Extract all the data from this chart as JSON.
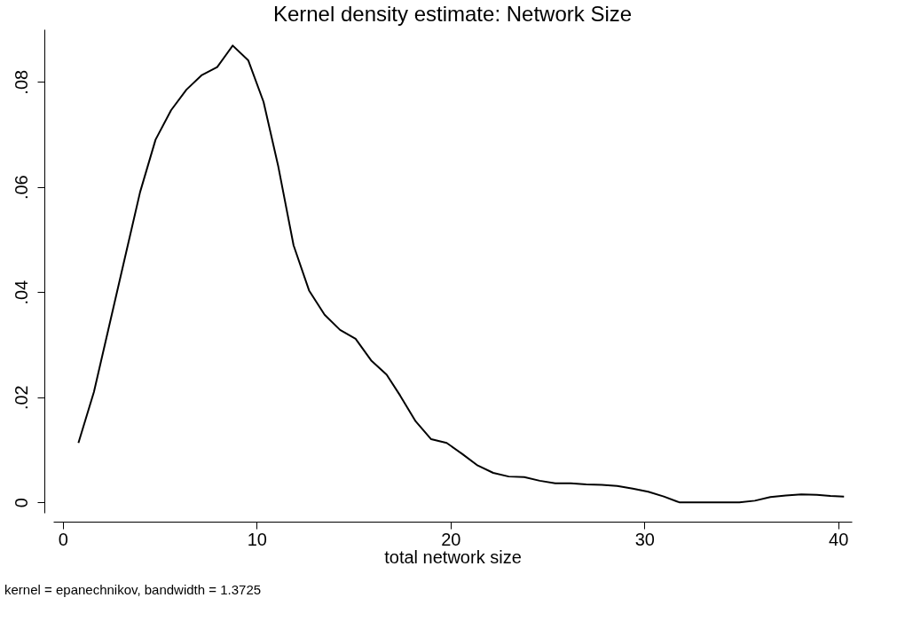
{
  "chart_data": {
    "type": "line",
    "title": "Kernel density estimate: Network Size",
    "xlabel": "total network size",
    "annotations": [
      "kernel = epanechnikov, bandwidth = 1.3725"
    ],
    "x": [
      0.8,
      1.6,
      2.35,
      3.14,
      3.98,
      4.78,
      5.58,
      6.37,
      7.17,
      7.96,
      8.76,
      9.56,
      10.35,
      11.1,
      11.9,
      12.7,
      13.5,
      14.3,
      15.1,
      15.9,
      16.7,
      17.4,
      18.2,
      19.0,
      19.8,
      20.6,
      21.4,
      22.2,
      23.0,
      23.8,
      24.6,
      25.4,
      26.2,
      27.0,
      27.8,
      28.6,
      29.4,
      30.2,
      31.0,
      31.8,
      32.6,
      33.4,
      34.2,
      34.9,
      35.7,
      36.5,
      37.3,
      38.1,
      38.9,
      39.6,
      40.3
    ],
    "series": [
      {
        "color": "#000000",
        "values": [
          0.0113,
          0.021,
          0.033,
          0.0456,
          0.059,
          0.069,
          0.0746,
          0.0785,
          0.0813,
          0.0828,
          0.0869,
          0.0841,
          0.0762,
          0.0641,
          0.0489,
          0.0403,
          0.0357,
          0.0328,
          0.0311,
          0.027,
          0.0243,
          0.0203,
          0.0154,
          0.012,
          0.0113,
          0.0092,
          0.007,
          0.0056,
          0.0049,
          0.0048,
          0.0041,
          0.0036,
          0.0036,
          0.0034,
          0.0033,
          0.0031,
          0.0026,
          0.002,
          0.0011,
          0,
          0,
          0,
          0,
          0,
          0.0003,
          0.001,
          0.0013,
          0.0015,
          0.0014,
          0.0012,
          0.0011
        ]
      }
    ],
    "xlim": [
      -0.5,
      40.7
    ],
    "xticks": [
      0,
      10,
      20,
      30,
      40
    ],
    "ylim": [
      -0.002,
      0.09
    ],
    "yticks": [
      0,
      {
        "value": 0.02,
        "label": ".02"
      },
      {
        "value": 0.04,
        "label": ".04"
      },
      {
        "value": 0.06,
        "label": ".06"
      },
      {
        "value": 0.08,
        "label": ".08"
      }
    ],
    "grid": false,
    "marker": "none",
    "line_style": "solid"
  }
}
